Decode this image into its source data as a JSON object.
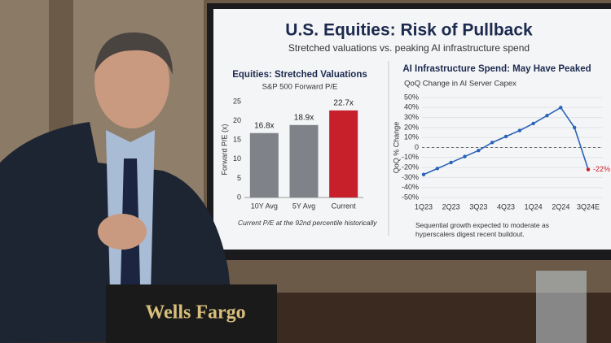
{
  "screen": {
    "title": "U.S. Equities: Risk of Pullback",
    "subtitle": "Stretched valuations vs. peaking AI infrastructure spend"
  },
  "nameplate": "Wells Fargo",
  "chart_data": [
    {
      "type": "bar",
      "title": "Equities: Stretched Valuations",
      "subtitle": "S&P 500 Forward P/E",
      "y_label": "Forward P/E (x)",
      "categories": [
        "10Y Avg",
        "5Y Avg",
        "Current"
      ],
      "values": [
        16.8,
        18.9,
        22.7
      ],
      "value_labels": [
        "16.8x",
        "18.9x",
        "22.7x"
      ],
      "colors": [
        "#7f8389",
        "#7f8389",
        "#c8202a"
      ],
      "ylim": [
        0,
        25
      ],
      "yticks": [
        0,
        5,
        10,
        15,
        20,
        25
      ],
      "note": "Current P/E at the 92nd percentile historically"
    },
    {
      "type": "line",
      "title": "AI Infrastructure Spend: May Have Peaked",
      "subtitle": "QoQ Change in AI Server Capex",
      "y_label": "QoQ % Change",
      "categories": [
        "1Q23",
        null,
        "2Q23",
        null,
        "3Q23",
        null,
        "4Q23",
        null,
        "1Q24",
        null,
        "2Q24",
        null,
        "3Q24E"
      ],
      "values": [
        -27,
        -21,
        -15,
        -9,
        -3,
        5,
        11,
        17,
        24,
        32,
        40,
        20,
        -22
      ],
      "value_labels": [
        null,
        null,
        null,
        null,
        null,
        null,
        null,
        null,
        null,
        null,
        null,
        null,
        "-22%"
      ],
      "color": "#2a63b8",
      "end_color": "#c8202a",
      "zero_line": "dashed",
      "grid": true,
      "ylim": [
        -50,
        50
      ],
      "yticks": [
        {
          "value": -50,
          "label": "-50%"
        },
        {
          "value": -40,
          "label": "-40%"
        },
        {
          "value": -30,
          "label": "-30%"
        },
        {
          "value": -20,
          "label": "-20%"
        },
        {
          "value": -10,
          "label": "-10%"
        },
        0,
        {
          "value": 10,
          "label": "10%"
        },
        {
          "value": 20,
          "label": "20%"
        },
        {
          "value": 30,
          "label": "30%"
        },
        {
          "value": 40,
          "label": "40%"
        },
        {
          "value": 50,
          "label": "50%"
        }
      ],
      "note": "Sequential growth expected to moderate as hyperscalers digest recent buildout."
    }
  ]
}
